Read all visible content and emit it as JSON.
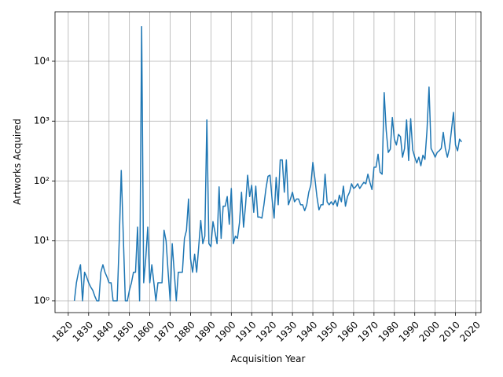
{
  "chart_data": {
    "type": "line",
    "x_label": "Acquisition Year",
    "y_label": "Artworks Acquired",
    "log_y": true,
    "grid": true,
    "xlim": [
      1813.5,
      2022.5
    ],
    "ylim": [
      0.635,
      67000
    ],
    "xticks": [
      1820,
      1830,
      1840,
      1850,
      1860,
      1870,
      1880,
      1890,
      1900,
      1910,
      1920,
      1930,
      1940,
      1950,
      1960,
      1970,
      1980,
      1990,
      2000,
      2010,
      2020
    ],
    "yticks": [
      {
        "value": 1,
        "label": "10⁰"
      },
      {
        "value": 10,
        "label": "10¹"
      },
      {
        "value": 100,
        "label": "10²"
      },
      {
        "value": 1000,
        "label": "10³"
      },
      {
        "value": 10000,
        "label": "10⁴"
      }
    ],
    "x": [
      1823,
      1824,
      1825,
      1826,
      1827,
      1828,
      1829,
      1830,
      1831,
      1832,
      1833,
      1834,
      1835,
      1836,
      1837,
      1838,
      1839,
      1840,
      1841,
      1842,
      1843,
      1844,
      1845,
      1846,
      1847,
      1848,
      1849,
      1850,
      1851,
      1852,
      1853,
      1854,
      1855,
      1856,
      1857,
      1858,
      1859,
      1860,
      1861,
      1862,
      1863,
      1864,
      1865,
      1866,
      1867,
      1868,
      1869,
      1870,
      1871,
      1872,
      1873,
      1874,
      1875,
      1876,
      1877,
      1878,
      1879,
      1880,
      1881,
      1882,
      1883,
      1884,
      1885,
      1886,
      1887,
      1888,
      1889,
      1890,
      1891,
      1892,
      1893,
      1894,
      1895,
      1896,
      1897,
      1898,
      1899,
      1900,
      1901,
      1902,
      1903,
      1904,
      1905,
      1906,
      1907,
      1908,
      1909,
      1910,
      1911,
      1912,
      1913,
      1914,
      1915,
      1916,
      1917,
      1918,
      1919,
      1920,
      1921,
      1922,
      1923,
      1924,
      1925,
      1926,
      1927,
      1928,
      1929,
      1930,
      1931,
      1932,
      1933,
      1934,
      1935,
      1936,
      1937,
      1938,
      1939,
      1940,
      1941,
      1942,
      1943,
      1944,
      1945,
      1946,
      1947,
      1948,
      1949,
      1950,
      1951,
      1952,
      1953,
      1954,
      1955,
      1956,
      1957,
      1958,
      1959,
      1960,
      1961,
      1962,
      1963,
      1964,
      1965,
      1966,
      1967,
      1968,
      1969,
      1970,
      1971,
      1972,
      1973,
      1974,
      1975,
      1976,
      1977,
      1978,
      1979,
      1980,
      1981,
      1982,
      1983,
      1984,
      1985,
      1986,
      1987,
      1988,
      1989,
      1990,
      1991,
      1992,
      1993,
      1994,
      1995,
      1996,
      1997,
      1998,
      1999,
      2000,
      2001,
      2002,
      2003,
      2004,
      2005,
      2006,
      2007,
      2008,
      2009,
      2010,
      2011,
      2012,
      2013
    ],
    "series": [
      {
        "color": "#1f77b4",
        "values": [
          1,
          2,
          3,
          4,
          1,
          3,
          2.5,
          2,
          1.7,
          1.5,
          1.2,
          1,
          1,
          3,
          4,
          3,
          2.5,
          2,
          2,
          1,
          1,
          1,
          10,
          150,
          12,
          1,
          1,
          1.5,
          2,
          3,
          3,
          17,
          1,
          38000,
          2,
          5,
          17,
          2,
          4,
          2,
          1,
          2,
          2,
          2,
          15,
          10,
          3,
          1,
          9,
          3,
          1,
          3,
          3,
          3,
          11,
          15,
          50,
          5,
          3,
          6,
          3,
          8,
          22,
          9,
          12,
          1050,
          9,
          8,
          21,
          14,
          9,
          80,
          11,
          38,
          38,
          55,
          19,
          75,
          9,
          12,
          11,
          20,
          65,
          17,
          40,
          125,
          55,
          85,
          30,
          82,
          25,
          25,
          24,
          40,
          75,
          120,
          125,
          50,
          24,
          115,
          40,
          225,
          225,
          65,
          225,
          40,
          50,
          65,
          45,
          50,
          50,
          40,
          40,
          32,
          40,
          65,
          85,
          205,
          110,
          55,
          33,
          40,
          40,
          130,
          45,
          40,
          45,
          40,
          48,
          38,
          58,
          45,
          82,
          38,
          55,
          65,
          90,
          75,
          80,
          90,
          75,
          85,
          95,
          90,
          130,
          95,
          72,
          170,
          170,
          280,
          140,
          130,
          3000,
          700,
          300,
          340,
          1150,
          500,
          400,
          600,
          550,
          250,
          350,
          1050,
          220,
          1100,
          330,
          250,
          200,
          250,
          180,
          270,
          230,
          700,
          3700,
          350,
          300,
          250,
          300,
          320,
          350,
          650,
          350,
          250,
          350,
          700,
          1400,
          400,
          320,
          500,
          450
        ]
      }
    ]
  }
}
